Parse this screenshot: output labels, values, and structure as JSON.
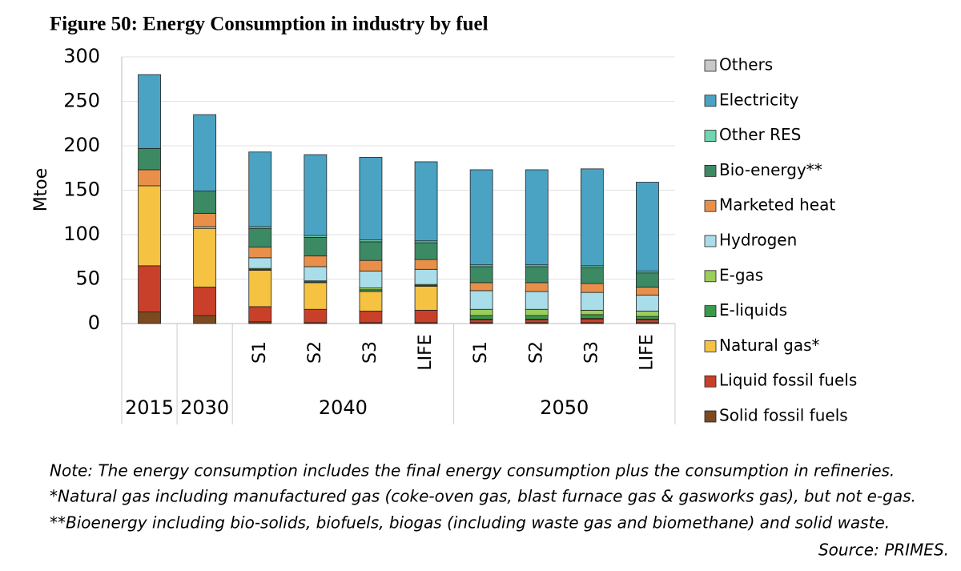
{
  "chart_data": {
    "type": "stacked_bar",
    "title": "Figure 50: Energy Consumption in industry by fuel",
    "y_label": "Mtoe",
    "categories": [
      null,
      null,
      "S1",
      "S2",
      "S3",
      "LIFE",
      "S1",
      "S2",
      "S3",
      "LIFE"
    ],
    "groups": [
      {
        "label": "2015",
        "count": 1
      },
      {
        "label": "2030",
        "count": 1
      },
      {
        "label": "2040",
        "count": 4
      },
      {
        "label": "2050",
        "count": 4
      }
    ],
    "ylim": [
      0,
      300
    ],
    "yticks": [
      0,
      50,
      100,
      150,
      200,
      250,
      300
    ],
    "grid": true,
    "legend": "right",
    "series": [
      {
        "name": "Solid fossil fuels",
        "color": "#7b4a1e",
        "values": [
          13,
          9,
          2,
          1,
          1,
          1,
          1,
          1,
          1,
          1
        ]
      },
      {
        "name": "Liquid fossil fuels",
        "color": "#c9402a",
        "values": [
          52,
          32,
          17,
          15,
          13,
          14,
          3,
          3,
          4,
          3
        ]
      },
      {
        "name": "Natural gas*",
        "color": "#f5c242",
        "values": [
          90,
          66,
          41,
          30,
          22,
          27,
          1,
          1,
          1,
          1
        ]
      },
      {
        "name": "E-liquids",
        "color": "#3a9a4a",
        "values": [
          0,
          0,
          1,
          1,
          2,
          1,
          4,
          4,
          4,
          3
        ]
      },
      {
        "name": "E-gas",
        "color": "#9acd5a",
        "values": [
          0,
          0,
          1,
          1,
          2,
          1,
          7,
          7,
          5,
          6
        ]
      },
      {
        "name": "Hydrogen",
        "color": "#a8dde9",
        "values": [
          0,
          2,
          12,
          16,
          19,
          17,
          21,
          20,
          20,
          18
        ]
      },
      {
        "name": "Marketed heat",
        "color": "#e8904a",
        "values": [
          18,
          15,
          12,
          12,
          12,
          11,
          9,
          10,
          10,
          9
        ]
      },
      {
        "name": "Bio-energy**",
        "color": "#3c8a64",
        "values": [
          24,
          25,
          21,
          21,
          21,
          19,
          18,
          18,
          18,
          16
        ]
      },
      {
        "name": "Other RES",
        "color": "#6fd6b0",
        "values": [
          0,
          0,
          2,
          2,
          2,
          2,
          2,
          2,
          2,
          2
        ]
      },
      {
        "name": "Electricity",
        "color": "#4ba3c3",
        "values": [
          83,
          86,
          84,
          91,
          93,
          89,
          107,
          107,
          109,
          100
        ]
      },
      {
        "name": "Others",
        "color": "#c8c8c8",
        "values": [
          0,
          0,
          0,
          0,
          0,
          0,
          0,
          0,
          0,
          0
        ]
      }
    ],
    "notes": [
      "Note: The energy consumption includes the final energy consumption plus the consumption in refineries.",
      "*Natural gas including manufactured gas (coke-oven gas, blast furnace gas & gasworks gas), but not e-gas.",
      "**Bioenergy including bio-solids, biofuels, biogas (including waste gas and biomethane) and solid waste."
    ],
    "source": "Source: PRIMES."
  }
}
